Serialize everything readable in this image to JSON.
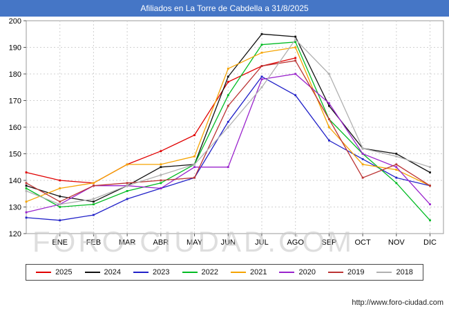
{
  "header": {
    "title": "Afiliados en La Torre de Cabdella a 31/8/2025"
  },
  "watermark": "FORO-CIUDAD.COM",
  "footer": {
    "url": "http://www.foro-ciudad.com"
  },
  "chart_data": {
    "type": "line",
    "title": "Afiliados en La Torre de Cabdella a 31/8/2025",
    "categories": [
      "ENE",
      "FEB",
      "MAR",
      "ABR",
      "MAY",
      "JUN",
      "JUL",
      "AGO",
      "SEP",
      "OCT",
      "NOV",
      "DIC"
    ],
    "note": "first value of each series is the point drawn on the left axis (previous December); 2025 series ends in AGO",
    "ylim": [
      120,
      200
    ],
    "ytick_step": 10,
    "grid": true,
    "legend_position": "bottom",
    "axis_color": "#999999",
    "grid_color": "#cfcfcf",
    "series": [
      {
        "name": "2025",
        "color": "#e00000",
        "values": [
          143,
          140,
          139,
          146,
          151,
          157,
          177,
          183,
          186,
          null,
          null,
          null,
          null
        ]
      },
      {
        "name": "2024",
        "color": "#111111",
        "values": [
          138,
          134,
          132,
          138,
          145,
          146,
          179,
          195,
          194,
          168,
          152,
          150,
          143
        ]
      },
      {
        "name": "2023",
        "color": "#2020c8",
        "values": [
          126,
          125,
          127,
          133,
          137,
          141,
          162,
          179,
          172,
          155,
          148,
          141,
          138
        ]
      },
      {
        "name": "2022",
        "color": "#00bb22",
        "values": [
          137,
          130,
          131,
          136,
          139,
          146,
          172,
          191,
          192,
          163,
          150,
          139,
          125
        ]
      },
      {
        "name": "2021",
        "color": "#f5a300",
        "values": [
          132,
          137,
          139,
          146,
          146,
          149,
          182,
          188,
          190,
          160,
          146,
          144,
          138
        ]
      },
      {
        "name": "2020",
        "color": "#9922cc",
        "values": [
          128,
          131,
          138,
          138,
          137,
          145,
          145,
          178,
          180,
          169,
          150,
          145,
          131
        ]
      },
      {
        "name": "2019",
        "color": "#bb3333",
        "values": [
          139,
          132,
          138,
          139,
          140,
          141,
          168,
          183,
          185,
          163,
          141,
          146,
          138
        ]
      },
      {
        "name": "2018",
        "color": "#b0b0b0",
        "values": [
          136,
          131,
          133,
          138,
          142,
          146,
          160,
          175,
          193,
          180,
          152,
          149,
          145
        ]
      }
    ]
  }
}
